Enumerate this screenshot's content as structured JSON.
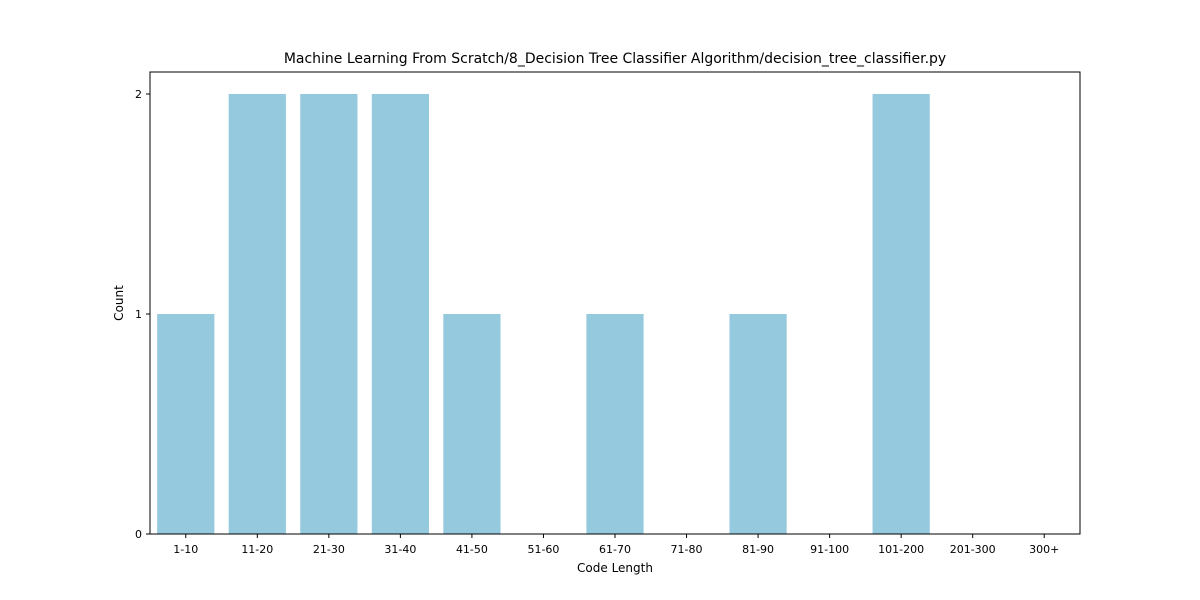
{
  "chart_data": {
    "type": "bar",
    "title": "Machine Learning From Scratch/8_Decision Tree Classifier Algorithm/decision_tree_classifier.py",
    "xlabel": "Code Length",
    "ylabel": "Count",
    "categories": [
      "1-10",
      "11-20",
      "21-30",
      "31-40",
      "41-50",
      "51-60",
      "61-70",
      "71-80",
      "81-90",
      "91-100",
      "101-200",
      "201-300",
      "300+"
    ],
    "values": [
      1,
      2,
      2,
      2,
      1,
      0,
      1,
      0,
      1,
      0,
      2,
      0,
      0
    ],
    "yticks": [
      0,
      1,
      2
    ],
    "ylim": [
      0,
      2.1
    ],
    "bar_color": "#95c9de",
    "grid": false,
    "legend": "none"
  }
}
